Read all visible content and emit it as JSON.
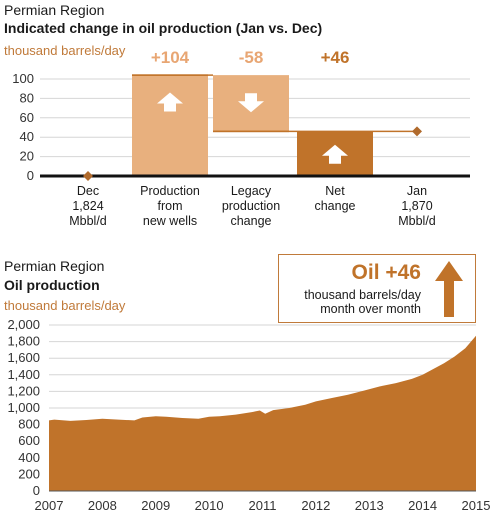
{
  "top": {
    "region": "Permian Region",
    "title": "Indicated change in oil production (Jan vs. Dec)",
    "unit": "thousand barrels/day"
  },
  "bottom": {
    "region": "Permian Region",
    "title": "Oil production",
    "unit": "thousand barrels/day"
  },
  "callout": {
    "headline": "Oil +46",
    "line1": "thousand barrels/day",
    "line2": "month over month"
  },
  "colors": {
    "light_bar": "#e8b07e",
    "dark_bar": "#c0732a",
    "area": "#c0732a",
    "accent_text": "#c07a3a",
    "light_label": "#e8a673",
    "marker": "#b06a2c"
  },
  "chart_data": [
    {
      "type": "bar",
      "subtype": "waterfall",
      "ylim": [
        0,
        100
      ],
      "yticks": [
        "0",
        "20",
        "40",
        "60",
        "80",
        "100"
      ],
      "categories": [
        [
          "Dec",
          "1,824",
          "Mbbl/d"
        ],
        [
          "Production",
          "from",
          "new wells"
        ],
        [
          "Legacy",
          "production",
          "change"
        ],
        [
          "Net",
          "change"
        ],
        [
          "Jan",
          "1,870",
          "Mbbl/d"
        ]
      ],
      "values": [
        0,
        104,
        -58,
        46,
        46
      ],
      "data_labels": [
        "",
        "+104",
        "-58",
        "+46",
        ""
      ],
      "icons": [
        "",
        "arrow-up-icon",
        "arrow-down-icon",
        "arrow-up-icon",
        ""
      ],
      "markers": [
        "diamond",
        "",
        "",
        "",
        "diamond"
      ]
    },
    {
      "type": "area",
      "ylim": [
        0,
        2000
      ],
      "yticks": [
        "0",
        "200",
        "400",
        "600",
        "800",
        "1,000",
        "1,200",
        "1,400",
        "1,600",
        "1,800",
        "2,000"
      ],
      "xticks": [
        "2007",
        "2008",
        "2009",
        "2010",
        "2011",
        "2012",
        "2013",
        "2014",
        "2015"
      ],
      "x": [
        2007.0,
        2007.1,
        2007.4,
        2007.7,
        2008.0,
        2008.3,
        2008.6,
        2008.75,
        2009.0,
        2009.2,
        2009.5,
        2009.8,
        2010.0,
        2010.2,
        2010.5,
        2010.8,
        2010.95,
        2011.05,
        2011.2,
        2011.5,
        2011.8,
        2012.0,
        2012.3,
        2012.6,
        2012.9,
        2013.2,
        2013.5,
        2013.8,
        2014.0,
        2014.2,
        2014.4,
        2014.6,
        2014.8,
        2015.0
      ],
      "values": [
        850,
        860,
        845,
        855,
        870,
        860,
        850,
        885,
        900,
        895,
        880,
        870,
        895,
        900,
        920,
        950,
        970,
        930,
        975,
        1000,
        1040,
        1080,
        1120,
        1160,
        1210,
        1260,
        1300,
        1350,
        1400,
        1470,
        1540,
        1620,
        1720,
        1870
      ]
    }
  ]
}
